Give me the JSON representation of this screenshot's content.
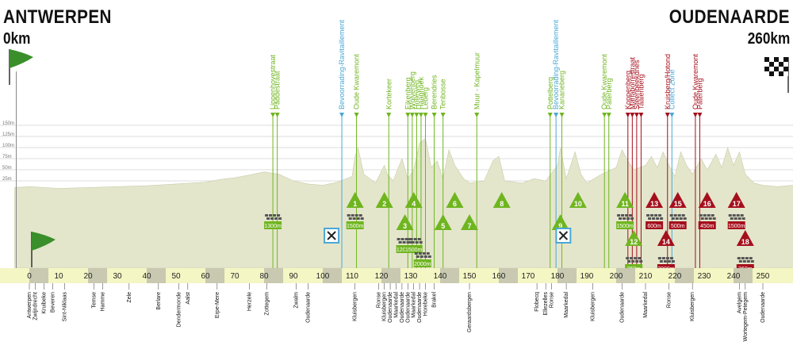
{
  "start": {
    "city": "ANTWERPEN",
    "km": "0km"
  },
  "finish": {
    "city": "OUDENAARDE",
    "km": "260km"
  },
  "colors": {
    "profile_fill": "#e4e6cc",
    "axis_band": "#f4f6c4",
    "axis_cell": "#c8c9b0",
    "green": "#6fb51f",
    "red": "#a50f1c",
    "blue": "#4aa8d6",
    "grid": "#bdbdbd"
  },
  "chart_data": {
    "type": "area",
    "title": "",
    "xlabel": "",
    "ylabel": "",
    "xlim": [
      -5,
      262
    ],
    "ylim": [
      0,
      160
    ],
    "y_gridlines": [
      {
        "value": 25,
        "label": "25m"
      },
      {
        "value": 50,
        "label": "50m"
      },
      {
        "value": 75,
        "label": "75m"
      },
      {
        "value": 100,
        "label": "100m"
      },
      {
        "value": 125,
        "label": "125m"
      },
      {
        "value": 150,
        "label": "150m"
      }
    ],
    "x_ticks": [
      0,
      10,
      20,
      30,
      40,
      50,
      60,
      70,
      80,
      90,
      100,
      110,
      120,
      130,
      140,
      150,
      160,
      170,
      180,
      190,
      200,
      210,
      220,
      230,
      240,
      250
    ],
    "profile": [
      [
        -5,
        10
      ],
      [
        0,
        12
      ],
      [
        10,
        8
      ],
      [
        20,
        10
      ],
      [
        30,
        12
      ],
      [
        40,
        14
      ],
      [
        50,
        18
      ],
      [
        60,
        22
      ],
      [
        65,
        28
      ],
      [
        70,
        32
      ],
      [
        75,
        38
      ],
      [
        80,
        45
      ],
      [
        85,
        40
      ],
      [
        90,
        25
      ],
      [
        95,
        18
      ],
      [
        100,
        15
      ],
      [
        105,
        22
      ],
      [
        110,
        35
      ],
      [
        111,
        80
      ],
      [
        112,
        100
      ],
      [
        114,
        40
      ],
      [
        118,
        20
      ],
      [
        121,
        60
      ],
      [
        122,
        40
      ],
      [
        124,
        25
      ],
      [
        127,
        75
      ],
      [
        129,
        30
      ],
      [
        131,
        50
      ],
      [
        133,
        110
      ],
      [
        135,
        120
      ],
      [
        137,
        55
      ],
      [
        139,
        70
      ],
      [
        141,
        30
      ],
      [
        143,
        95
      ],
      [
        145,
        60
      ],
      [
        148,
        30
      ],
      [
        150,
        20
      ],
      [
        155,
        25
      ],
      [
        158,
        70
      ],
      [
        160,
        80
      ],
      [
        162,
        25
      ],
      [
        168,
        20
      ],
      [
        172,
        30
      ],
      [
        176,
        25
      ],
      [
        180,
        60
      ],
      [
        181,
        100
      ],
      [
        183,
        30
      ],
      [
        186,
        90
      ],
      [
        188,
        40
      ],
      [
        190,
        20
      ],
      [
        195,
        40
      ],
      [
        200,
        55
      ],
      [
        202,
        95
      ],
      [
        204,
        70
      ],
      [
        206,
        50
      ],
      [
        210,
        60
      ],
      [
        212,
        80
      ],
      [
        214,
        55
      ],
      [
        216,
        90
      ],
      [
        218,
        60
      ],
      [
        220,
        35
      ],
      [
        222,
        90
      ],
      [
        224,
        60
      ],
      [
        226,
        40
      ],
      [
        229,
        75
      ],
      [
        231,
        50
      ],
      [
        234,
        85
      ],
      [
        236,
        55
      ],
      [
        238,
        100
      ],
      [
        240,
        60
      ],
      [
        242,
        90
      ],
      [
        244,
        40
      ],
      [
        247,
        20
      ],
      [
        250,
        15
      ],
      [
        255,
        12
      ],
      [
        260,
        15
      ],
      [
        262,
        15
      ]
    ],
    "climbs": [
      {
        "number": 1,
        "name": "Oude Kwaremont",
        "km": 111,
        "length": "1500m",
        "color": "green"
      },
      {
        "number": 2,
        "name": "Kortekeer",
        "km": 121,
        "length": "",
        "color": "green"
      },
      {
        "number": 3,
        "name": "Eikenberg",
        "km": 128,
        "length": "1200m",
        "color": "green"
      },
      {
        "number": 4,
        "name": "Wolvenberg",
        "km": 131,
        "length": "",
        "color": "green"
      },
      {
        "number": 5,
        "name": "Leberg",
        "km": 141,
        "length": "2000m",
        "color": "green"
      },
      {
        "number": 6,
        "name": "Berendries",
        "km": 145,
        "length": "",
        "color": "green"
      },
      {
        "number": 7,
        "name": "Tenbosse",
        "km": 150,
        "length": "",
        "color": "green"
      },
      {
        "number": 8,
        "name": "Muur - Kapelmuur",
        "km": 161,
        "length": "",
        "color": "green"
      },
      {
        "number": 9,
        "name": "Pottelberg",
        "km": 181,
        "length": "",
        "color": "green"
      },
      {
        "number": 10,
        "name": "Kanarieberg",
        "km": 187,
        "length": "",
        "color": "green"
      },
      {
        "number": 11,
        "name": "Oude Kwaremont",
        "km": 203,
        "length": "1500m",
        "color": "green"
      },
      {
        "number": 12,
        "name": "Paterberg",
        "km": 206,
        "length": "360m",
        "color": "green"
      },
      {
        "number": 13,
        "name": "Koppenberg",
        "km": 213,
        "length": "600m",
        "color": "red"
      },
      {
        "number": 14,
        "name": "Steenbeekdries",
        "km": 217,
        "length": "2000m",
        "color": "red"
      },
      {
        "number": 15,
        "name": "Taaienberg",
        "km": 221,
        "length": "500m",
        "color": "red"
      },
      {
        "number": 16,
        "name": "Kruisberg/Hotond",
        "km": 231,
        "length": "450m",
        "color": "red"
      },
      {
        "number": 17,
        "name": "Oude Kwaremont",
        "km": 241,
        "length": "1500m",
        "color": "red"
      },
      {
        "number": 18,
        "name": "Paterberg",
        "km": 244,
        "length": "360m",
        "color": "red"
      }
    ],
    "markers": [
      {
        "name": "Lippenhovestraat",
        "km": 83,
        "color": "green"
      },
      {
        "name": "Paddestraat",
        "km": 84.5,
        "color": "green"
      },
      {
        "name": "Bevoorrading-Ravitaillement",
        "km": 106.5,
        "color": "blue"
      },
      {
        "name": "Oude Kwaremont",
        "km": 111.5,
        "color": "green"
      },
      {
        "name": "Kortekeer",
        "km": 122.5,
        "color": "green"
      },
      {
        "name": "Eikenberg",
        "km": 129,
        "color": "green"
      },
      {
        "name": "Wolvenberg",
        "km": 130.5,
        "color": "green"
      },
      {
        "name": "Holleweg",
        "km": 132,
        "color": "green"
      },
      {
        "name": "Haaghoek",
        "km": 133.5,
        "color": "green"
      },
      {
        "name": "Leberg",
        "km": 135,
        "color": "green"
      },
      {
        "name": "Berendries",
        "km": 138,
        "color": "green"
      },
      {
        "name": "Tenbosse",
        "km": 141,
        "color": "green"
      },
      {
        "name": "Muur - Kapelmuur",
        "km": 152.5,
        "color": "green"
      },
      {
        "name": "Pottelberg",
        "km": 177.5,
        "color": "green"
      },
      {
        "name": "Bevoorrading-Ravitaillement",
        "km": 179.5,
        "color": "blue"
      },
      {
        "name": "Kanarieberg",
        "km": 181.5,
        "color": "green"
      },
      {
        "name": "Oude Kwaremont",
        "km": 196,
        "color": "green"
      },
      {
        "name": "Paterberg",
        "km": 197.5,
        "color": "green"
      },
      {
        "name": "Koppenberg",
        "km": 204,
        "color": "red"
      },
      {
        "name": "Mariaborrestraat",
        "km": 205.5,
        "color": "red"
      },
      {
        "name": "Steenbeekdries",
        "km": 207,
        "color": "red"
      },
      {
        "name": "Taaienberg",
        "km": 208.5,
        "color": "red"
      },
      {
        "name": "Kruisberg/Hotond",
        "km": 217.5,
        "color": "red"
      },
      {
        "name": "Collect Zone",
        "km": 219,
        "color": "blue"
      },
      {
        "name": "Oude Kwaremont",
        "km": 227,
        "color": "red"
      },
      {
        "name": "Paterberg",
        "km": 228.5,
        "color": "red"
      }
    ],
    "cobbles": [
      {
        "km": 83,
        "length": "1300m"
      },
      {
        "km": 111,
        "length": "1500m"
      },
      {
        "km": 128,
        "length": "1200m"
      },
      {
        "km": 131,
        "length": "1500m"
      },
      {
        "km": 134,
        "length": "2000m"
      },
      {
        "km": 203,
        "length": "1500m"
      },
      {
        "km": 206,
        "length": "360m"
      },
      {
        "km": 213,
        "length": "600m"
      },
      {
        "km": 217,
        "length": "2000m"
      },
      {
        "km": 221,
        "length": "500m"
      },
      {
        "km": 231,
        "length": "450m"
      },
      {
        "km": 241,
        "length": "1500m"
      },
      {
        "km": 244,
        "length": "360m"
      }
    ],
    "feed_zones": [
      103,
      182
    ],
    "places": [
      {
        "name": "Antwerpen",
        "km": 0
      },
      {
        "name": "Zwijndrecht",
        "km": 2
      },
      {
        "name": "Kruibeke",
        "km": 5
      },
      {
        "name": "Beveren",
        "km": 8
      },
      {
        "name": "Sint-Niklaas",
        "km": 12
      },
      {
        "name": "Temse",
        "km": 22
      },
      {
        "name": "Hamme",
        "km": 25
      },
      {
        "name": "Zele",
        "km": 34
      },
      {
        "name": "Berlare",
        "km": 44
      },
      {
        "name": "Dendermonde",
        "km": 51
      },
      {
        "name": "Aalst",
        "km": 54
      },
      {
        "name": "Erpe-Mere",
        "km": 64
      },
      {
        "name": "Herzele",
        "km": 75
      },
      {
        "name": "Zottegem",
        "km": 81
      },
      {
        "name": "Zwalm",
        "km": 91
      },
      {
        "name": "Oudenaarde",
        "km": 95
      },
      {
        "name": "Kluisbergen",
        "km": 111
      },
      {
        "name": "Ronse",
        "km": 119
      },
      {
        "name": "Kluisbergen",
        "km": 121
      },
      {
        "name": "Oudenaarde",
        "km": 123
      },
      {
        "name": "Maarkedal",
        "km": 125
      },
      {
        "name": "Oudenaarde",
        "km": 127
      },
      {
        "name": "Oudenaarde",
        "km": 129
      },
      {
        "name": "Maarkedal",
        "km": 131
      },
      {
        "name": "Oudenaarde",
        "km": 133
      },
      {
        "name": "Horebeke",
        "km": 135
      },
      {
        "name": "Brakel",
        "km": 138
      },
      {
        "name": "Geraardsbergen",
        "km": 150
      },
      {
        "name": "Flobecq",
        "km": 173
      },
      {
        "name": "Ellezelles",
        "km": 176
      },
      {
        "name": "Ronse",
        "km": 178
      },
      {
        "name": "Maarkedal",
        "km": 183
      },
      {
        "name": "Kluisbergen",
        "km": 192
      },
      {
        "name": "Oudenaarde",
        "km": 202
      },
      {
        "name": "Maarkedal",
        "km": 210
      },
      {
        "name": "Ronse",
        "km": 218
      },
      {
        "name": "Kluisbergen",
        "km": 226
      },
      {
        "name": "Avelgem",
        "km": 242
      },
      {
        "name": "Wortegem-Petegem",
        "km": 244
      },
      {
        "name": "Oudenaarde",
        "km": 250
      }
    ]
  }
}
